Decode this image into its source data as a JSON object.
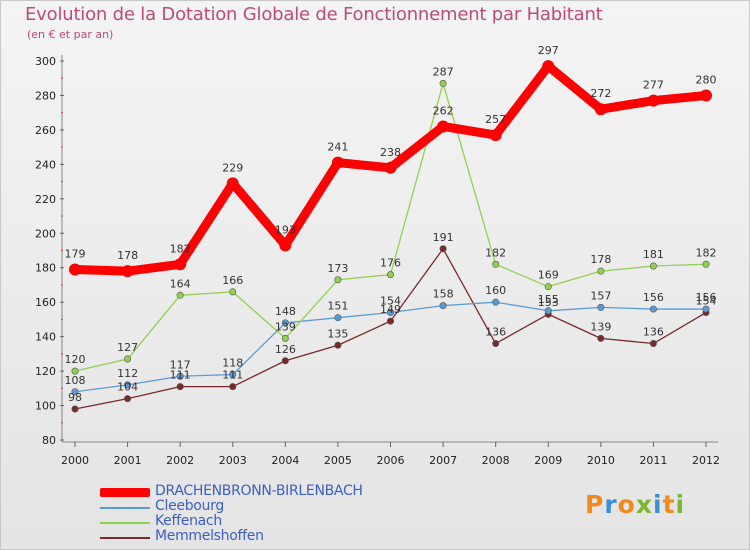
{
  "title": "Evolution de la Dotation Globale de Fonctionnement par Habitant",
  "subtitle": "(en € et par an)",
  "logo_letters": [
    "P",
    "r",
    "o",
    "x",
    "i",
    "t",
    "i"
  ],
  "logo_colors": [
    "#f08a1c",
    "#3a8fd6",
    "#f08a1c",
    "#7ab832",
    "#3a8fd6",
    "#f08a1c",
    "#7ab832"
  ],
  "chart_data": {
    "type": "line",
    "title": "Evolution de la Dotation Globale de Fonctionnement par Habitant",
    "subtitle": "(en € et par an)",
    "xlabel": "",
    "ylabel": "",
    "ylim": [
      80,
      300
    ],
    "yticks": [
      80,
      100,
      120,
      140,
      160,
      180,
      200,
      220,
      240,
      260,
      280,
      300
    ],
    "x": [
      2000,
      2001,
      2002,
      2003,
      2004,
      2005,
      2006,
      2007,
      2008,
      2009,
      2010,
      2011,
      2012
    ],
    "grid": false,
    "legend_position": "bottom",
    "series": [
      {
        "name": "DRACHENBRONN-BIRLENBACH",
        "color": "#ff0000",
        "values": [
          179,
          178,
          182,
          229,
          193,
          241,
          238,
          262,
          257,
          297,
          272,
          277,
          280
        ]
      },
      {
        "name": "Cleebourg",
        "color": "#5b9bd5",
        "values": [
          108,
          112,
          117,
          118,
          148,
          151,
          154,
          158,
          160,
          155,
          157,
          156,
          156
        ]
      },
      {
        "name": "Keffenach",
        "color": "#92d050",
        "values": [
          120,
          127,
          164,
          166,
          139,
          173,
          176,
          287,
          182,
          169,
          178,
          181,
          182
        ]
      },
      {
        "name": "Memmelshoffen",
        "color": "#7a2a2a",
        "values": [
          98,
          104,
          111,
          111,
          126,
          135,
          149,
          191,
          136,
          153,
          139,
          136,
          154
        ]
      }
    ]
  }
}
